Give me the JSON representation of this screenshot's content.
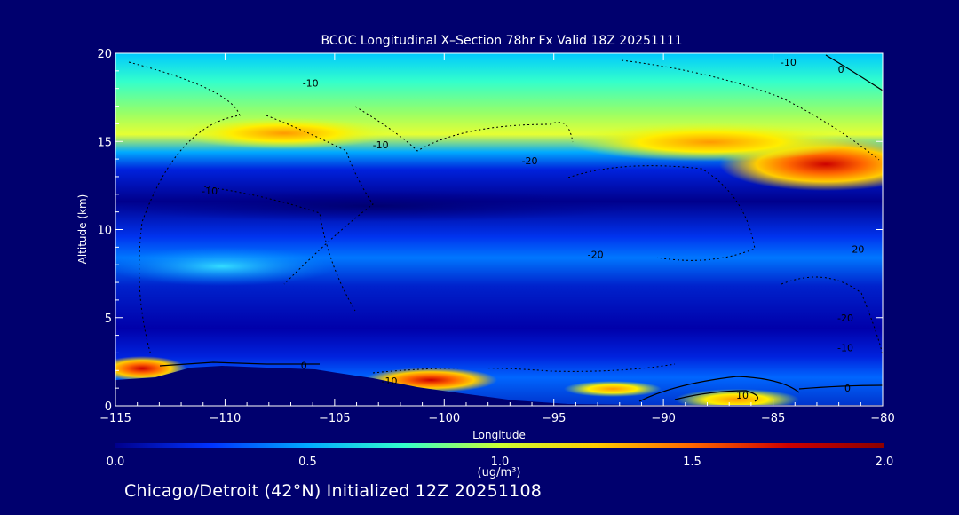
{
  "chart_data": {
    "type": "heatmap",
    "title": "BCOC Longitudinal X–Section 78hr  Fx Valid 18Z 20251111",
    "xlabel": "Longitude",
    "ylabel": "Altitude (km)",
    "xlim": [
      -115,
      -80
    ],
    "ylim": [
      0,
      20
    ],
    "x_ticks": [
      -115,
      -110,
      -105,
      -100,
      -95,
      -90,
      -85,
      -80
    ],
    "x_tick_labels": [
      "−115",
      "−110",
      "−105",
      "−100",
      "−95",
      "−90",
      "−85",
      "−80"
    ],
    "y_ticks": [
      0,
      5,
      10,
      15,
      20
    ],
    "y_tick_labels": [
      "0",
      "5",
      "10",
      "15",
      "20"
    ],
    "colorbar": {
      "min": 0.0,
      "max": 2.0,
      "ticks": [
        0.0,
        0.5,
        1.0,
        1.5,
        2.0
      ],
      "tick_labels": [
        "0.0",
        "0.5",
        "1.0",
        "1.5",
        "2.0"
      ],
      "label": "(ug/m³)",
      "colors": [
        "#00008c",
        "#0033ff",
        "#00aaff",
        "#33ffcc",
        "#ccff33",
        "#ffcc00",
        "#ff6600",
        "#cc0000",
        "#8c0000"
      ]
    },
    "contour_labels": [
      {
        "text": "-10",
        "lon": -84.3,
        "alt": 19.5
      },
      {
        "text": "0",
        "lon": -81.9,
        "alt": 19.1
      },
      {
        "text": "-10",
        "lon": -106.1,
        "alt": 18.3
      },
      {
        "text": "-10",
        "lon": -102.9,
        "alt": 14.8
      },
      {
        "text": "-20",
        "lon": -96.1,
        "alt": 13.9
      },
      {
        "text": "-10",
        "lon": -110.7,
        "alt": 12.2
      },
      {
        "text": "-20",
        "lon": -93.1,
        "alt": 8.6
      },
      {
        "text": "-20",
        "lon": -81.2,
        "alt": 8.9
      },
      {
        "text": "-20",
        "lon": -81.7,
        "alt": 5.0
      },
      {
        "text": "-10",
        "lon": -81.7,
        "alt": 3.3
      },
      {
        "text": "0",
        "lon": -106.4,
        "alt": 2.3
      },
      {
        "text": "-10",
        "lon": -102.5,
        "alt": 1.4
      },
      {
        "text": "10",
        "lon": -86.4,
        "alt": 0.6
      },
      {
        "text": "0",
        "lon": -81.6,
        "alt": 1.0
      }
    ]
  },
  "footer": "Chicago/Detroit (42°N) Initialized 12Z 20251108"
}
